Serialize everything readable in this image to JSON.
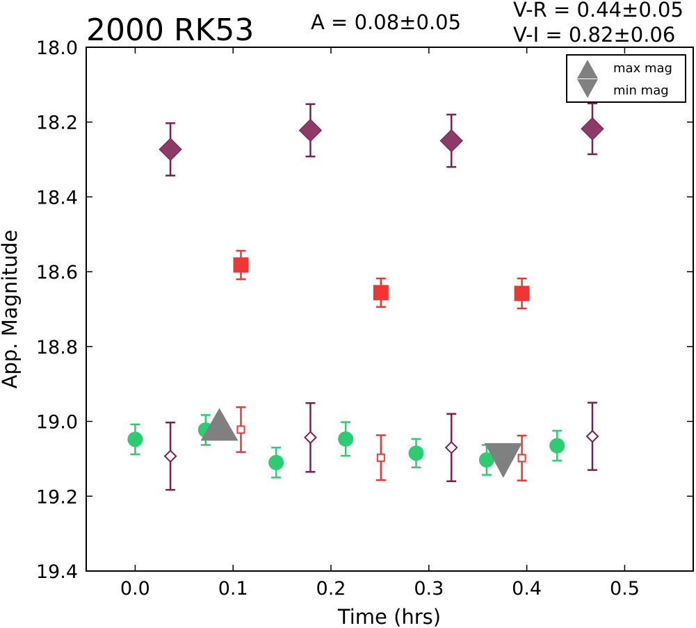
{
  "chart_data": {
    "type": "scatter",
    "title": "2000 RK53",
    "annotations": {
      "amplitude": "A  = 0.08±0.05",
      "v_r": "V-R = 0.44±0.05",
      "v_i": "V-I  = 0.82±0.06"
    },
    "xlabel": "Time (hrs)",
    "ylabel": "App. Magnitude",
    "xlim": [
      -0.05,
      0.57
    ],
    "ylim": [
      19.4,
      18.0
    ],
    "y_inverted": true,
    "x_ticks": [
      "0.0",
      "0.1",
      "0.2",
      "0.3",
      "0.4",
      "0.5"
    ],
    "y_ticks": [
      "18.0",
      "18.2",
      "18.4",
      "18.6",
      "18.8",
      "19.0",
      "19.2",
      "19.4"
    ],
    "grid": false,
    "legend_placement": "top-right",
    "legend": [
      {
        "label": "max mag",
        "marker": "triangle-up"
      },
      {
        "label": "min mag",
        "marker": "triangle-down"
      }
    ],
    "colors": {
      "green": "#2ecc71",
      "red": "#f03535",
      "purple": "#7b1f4d",
      "purple_fill": "#8e3a68",
      "gray": "#808080"
    },
    "series": [
      {
        "marker": "diamond-filled",
        "color": "#7b1f4d",
        "x": [
          0.036,
          0.179,
          0.323,
          0.467
        ],
        "y": [
          18.273,
          18.222,
          18.25,
          18.218
        ],
        "err": [
          0.07,
          0.07,
          0.07,
          0.068
        ]
      },
      {
        "marker": "square-filled",
        "color": "#f03535",
        "x": [
          0.108,
          0.251,
          0.395
        ],
        "y": [
          18.582,
          18.656,
          18.658
        ],
        "err": [
          0.038,
          0.038,
          0.04
        ]
      },
      {
        "marker": "circle",
        "color": "#2ecc71",
        "x": [
          0.0,
          0.072,
          0.144,
          0.215,
          0.287,
          0.359,
          0.431
        ],
        "y": [
          19.048,
          19.023,
          19.11,
          19.047,
          19.085,
          19.103,
          19.065
        ],
        "err": [
          0.04,
          0.04,
          0.04,
          0.045,
          0.038,
          0.04,
          0.04
        ]
      },
      {
        "marker": "diamond-open",
        "color": "#7b1f4d",
        "x": [
          0.036,
          0.179,
          0.323,
          0.467
        ],
        "y": [
          19.093,
          19.043,
          19.07,
          19.04
        ],
        "err": [
          0.09,
          0.092,
          0.09,
          0.09
        ]
      },
      {
        "marker": "square-open",
        "color": "#f03535",
        "x": [
          0.108,
          0.251,
          0.395
        ],
        "y": [
          19.022,
          19.097,
          19.098
        ],
        "err": [
          0.06,
          0.06,
          0.06
        ]
      },
      {
        "marker": "triangle-up",
        "color": "#808080",
        "x": [
          0.086
        ],
        "y": [
          19.022
        ],
        "err": []
      },
      {
        "marker": "triangle-down",
        "color": "#808080",
        "x": [
          0.376
        ],
        "y": [
          19.097
        ],
        "err": []
      }
    ]
  }
}
